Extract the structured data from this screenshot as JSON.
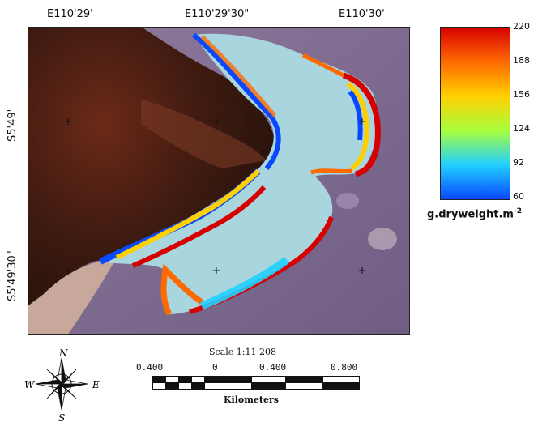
{
  "map": {
    "lon_labels": [
      "E110'29'",
      "E110'29'30\"",
      "E110'30'"
    ],
    "lat_labels": [
      "S5'49'",
      "S5'49'30\""
    ]
  },
  "colorbar": {
    "ticks": [
      "220",
      "188",
      "156",
      "124",
      "92",
      "60"
    ],
    "unit_main": "g.dryweight.m",
    "unit_exp": "-2",
    "colors": [
      "#d60000",
      "#ff6a00",
      "#ffd000",
      "#a8ff3c",
      "#20d0ff",
      "#0a48ff"
    ]
  },
  "scale": {
    "title": "Scale 1:11 208",
    "values": [
      "0.400",
      "0",
      "0.400",
      "0.800"
    ],
    "units": "Kilometers"
  },
  "compass": {
    "n": "N",
    "s": "S",
    "e": "E",
    "w": "W"
  }
}
